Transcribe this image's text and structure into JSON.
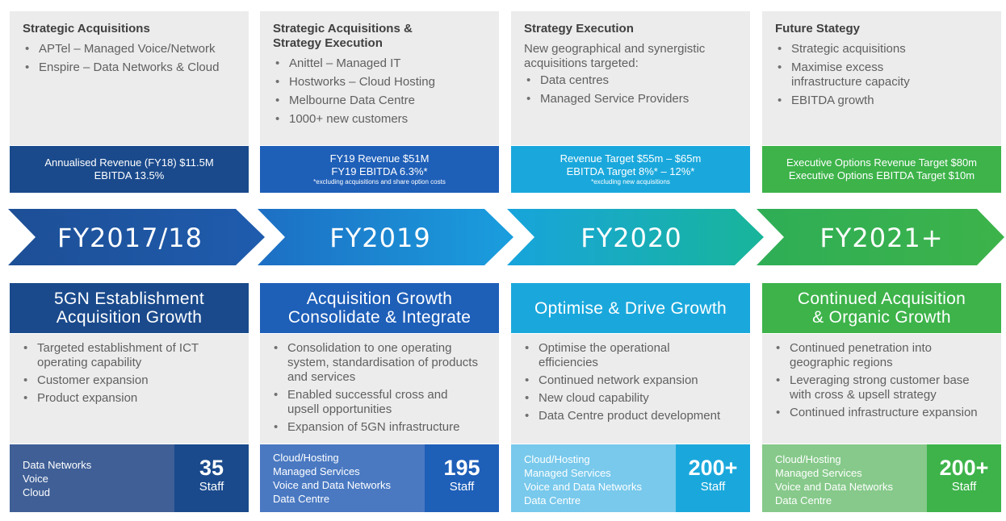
{
  "colors": {
    "navy": "#1a4a8c",
    "blue": "#1e5fb8",
    "cyan": "#1aa8dc",
    "green": "#3db34a",
    "light_grey": "#ececec"
  },
  "columns": [
    {
      "top_title": "Strategic Acquisitions",
      "top_intro": "",
      "top_items": [
        "APTel – Managed Voice/Network",
        "Enspire – Data Networks & Cloud"
      ],
      "band_lines": [
        "Annualised Revenue (FY18) $11.5M",
        "EBITDA 13.5%"
      ],
      "band_note": "",
      "year": "FY2017/18",
      "head_lines": [
        "5GN Establishment",
        "Acquisition Growth"
      ],
      "body_items": [
        "Targeted establishment of ICT operating capability",
        "Customer expansion",
        "Product expansion"
      ],
      "foot_items": [
        "Data Networks",
        "Voice",
        "Cloud"
      ],
      "staff_number": "35",
      "staff_label": "Staff"
    },
    {
      "top_title": "Strategic Acquisitions & Strategy Execution",
      "top_intro": "",
      "top_items": [
        "Anittel – Managed IT",
        "Hostworks – Cloud Hosting",
        "Melbourne Data Centre",
        "1000+ new customers"
      ],
      "band_lines": [
        "FY19 Revenue $51M",
        "FY19 EBITDA 6.3%*"
      ],
      "band_note": "*excluding acquisitions and share option costs",
      "year": "FY2019",
      "head_lines": [
        "Acquisition Growth",
        "Consolidate & Integrate"
      ],
      "body_items": [
        "Consolidation to one operating system, standardisation of products and services",
        "Enabled successful cross and upsell opportunities",
        "Expansion of 5GN infrastructure"
      ],
      "foot_items": [
        "Cloud/Hosting",
        "Managed Services",
        "Voice and Data Networks",
        "Data Centre"
      ],
      "staff_number": "195",
      "staff_label": "Staff"
    },
    {
      "top_title": "Strategy Execution",
      "top_intro": "New geographical and synergistic acquisitions targeted:",
      "top_items": [
        "Data centres",
        "Managed Service Providers"
      ],
      "band_lines": [
        "Revenue Target $55m – $65m",
        "EBITDA Target 8%* – 12%*"
      ],
      "band_note": "*excluding new acquisitions",
      "year": "FY2020",
      "head_lines": [
        "Optimise & Drive Growth"
      ],
      "body_items": [
        "Optimise the operational efficiencies",
        "Continued network expansion",
        "New cloud capability",
        "Data Centre product development"
      ],
      "foot_items": [
        "Cloud/Hosting",
        "Managed Services",
        "Voice and Data Networks",
        "Data Centre"
      ],
      "staff_number": "200+",
      "staff_label": "Staff"
    },
    {
      "top_title": "Future Stategy",
      "top_intro": "",
      "top_items": [
        "Strategic acquisitions",
        "Maximise excess infrastructure capacity",
        "EBITDA growth"
      ],
      "band_lines": [
        "Executive Options Revenue Target $80m",
        "Executive Options EBITDA Target $10m"
      ],
      "band_note": "",
      "year": "FY2021+",
      "head_lines": [
        "Continued Acquisition",
        "& Organic Growth"
      ],
      "body_items": [
        "Continued penetration into geographic regions",
        "Leveraging strong customer base with cross & upsell strategy",
        "Continued infrastructure expansion"
      ],
      "foot_items": [
        "Cloud/Hosting",
        "Managed Services",
        "Voice and Data Networks",
        "Data Centre"
      ],
      "staff_number": "200+",
      "staff_label": "Staff"
    }
  ]
}
